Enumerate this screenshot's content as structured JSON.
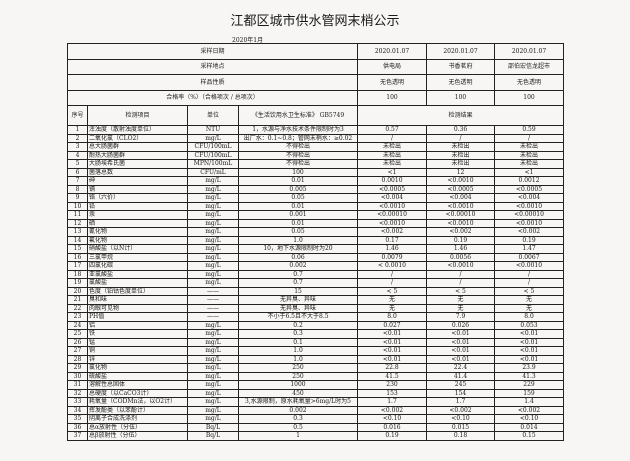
{
  "title": "江都区城市供水管网末梢公示",
  "month": "2020年1月",
  "meta": [
    {
      "label": "采样日期",
      "values": [
        "2020.01.07",
        "2020.01.07",
        "2020.01.07"
      ]
    },
    {
      "label": "采样地点",
      "values": [
        "供电局",
        "书香茗府",
        "邵伯宏信龙超市"
      ]
    },
    {
      "label": "样品性质",
      "values": [
        "无色透明",
        "无色透明",
        "无色透明"
      ]
    },
    {
      "label": "合格率（%）（合格项次 / 总项次）",
      "values": [
        "100",
        "100",
        "100"
      ]
    }
  ],
  "headers": {
    "no": "序号",
    "item": "检测项目",
    "unit": "单位",
    "standard": "《生活饮用水卫生标准》 GB5749",
    "results": "检测结果"
  },
  "rows": [
    [
      "1",
      "浑浊度（散射浊度单位）",
      "NTU",
      "1，水源与净水技术条件限制时为3",
      "0.57",
      "0.36",
      "0.59"
    ],
    [
      "2",
      "二氧化氯（CLO2）",
      "mg/L",
      "出厂水：0.1~0.8；管网末梢水：≥0.02",
      "/",
      "/",
      "/"
    ],
    [
      "3",
      "总大肠菌群",
      "CFU/100mL",
      "不得检出",
      "未检出",
      "未检出",
      "未检出"
    ],
    [
      "4",
      "耐热大肠菌群",
      "CFU/100mL",
      "不得检出",
      "未检出",
      "未检出",
      "未检出"
    ],
    [
      "5",
      "大肠埃希氏菌",
      "MPN/100mL",
      "不得检出",
      "未检出",
      "未检出",
      "未检出"
    ],
    [
      "6",
      "菌落总数",
      "CFU/mL",
      "100",
      "<1",
      "12",
      "<1"
    ],
    [
      "7",
      "砷",
      "mg/L",
      "0.01",
      "0.0010",
      "<0.0010",
      "0.0012"
    ],
    [
      "8",
      "镉",
      "mg/L",
      "0.005",
      "<0.0005",
      "<0.0005",
      "<0.0005"
    ],
    [
      "9",
      "铬（六价）",
      "mg/L",
      "0.05",
      "<0.004",
      "<0.004",
      "<0.004"
    ],
    [
      "10",
      "铅",
      "mg/L",
      "0.01",
      "<0.0010",
      "<0.0010",
      "<0.0010"
    ],
    [
      "11",
      "汞",
      "mg/L",
      "0.001",
      "<0.00010",
      "<0.00010",
      "<0.00010"
    ],
    [
      "12",
      "硒",
      "mg/L",
      "0.01",
      "<0.0010",
      "<0.0010",
      "<0.0010"
    ],
    [
      "13",
      "氰化物",
      "mg/L",
      "0.05",
      "<0.002",
      "<0.002",
      "<0.002"
    ],
    [
      "14",
      "氟化物",
      "mg/L",
      "1.0",
      "0.17",
      "0.19",
      "0.19"
    ],
    [
      "15",
      "硝酸盐（以N计）",
      "mg/L",
      "10，地下水源限制时为20",
      "1.46",
      "1.46",
      "1.47"
    ],
    [
      "16",
      "三氯甲烷",
      "mg/L",
      "0.06",
      "0.0079",
      "0.0056",
      "0.0067"
    ],
    [
      "17",
      "四氯化碳",
      "mg/L",
      "0.002",
      "< 0.0010",
      "<0.0010",
      "<0.0010"
    ],
    [
      "18",
      "亚氯酸盐",
      "mg/L",
      "0.7",
      "/",
      "/",
      "/"
    ],
    [
      "19",
      "氯酸盐",
      "mg/L",
      "0.7",
      "/",
      "/",
      "/"
    ],
    [
      "20",
      "色度（铂钴色度单位）",
      "——",
      "15",
      "< 5",
      "< 5",
      "< 5"
    ],
    [
      "21",
      "臭和味",
      "——",
      "无异臭、异味",
      "无",
      "无",
      "无"
    ],
    [
      "22",
      "肉眼可见物",
      "——",
      "无异臭、异味",
      "无",
      "无",
      "无"
    ],
    [
      "23",
      "PH值",
      "——",
      "不小于6.5且不大于8.5",
      "8.0",
      "7.9",
      "8.0"
    ],
    [
      "24",
      "铝",
      "mg/L",
      "0.2",
      "0.027",
      "0.026",
      "0.053"
    ],
    [
      "25",
      "铁",
      "mg/L",
      "0.3",
      "<0.01",
      "<0.01",
      "<0.01"
    ],
    [
      "26",
      "锰",
      "mg/L",
      "0.1",
      "<0.01",
      "<0.01",
      "<0.01"
    ],
    [
      "27",
      "铜",
      "mg/L",
      "1.0",
      "<0.01",
      "<0.01",
      "<0.01"
    ],
    [
      "28",
      "锌",
      "mg/L",
      "1.0",
      "<0.01",
      "<0.01",
      "<0.01"
    ],
    [
      "29",
      "氯化物",
      "mg/L",
      "250",
      "22.8",
      "22.4",
      "23.9"
    ],
    [
      "30",
      "硫酸盐",
      "mg/L",
      "250",
      "41.5",
      "41.4",
      "41.3"
    ],
    [
      "31",
      "溶解性总固体",
      "mg/L",
      "1000",
      "230",
      "245",
      "229"
    ],
    [
      "32",
      "总硬度（以CaCO3计）",
      "mg/L",
      "450",
      "153",
      "154",
      "159"
    ],
    [
      "33",
      "耗氧量（CODMn法，以O2计）",
      "mg/L",
      "3,水源限制，原水耗氧量>6mg/L时为5",
      "1.7",
      "1.7",
      "1.4"
    ],
    [
      "34",
      "挥发酚类（以苯酚计）",
      "mg/L",
      "0.002",
      "<0.002",
      "<0.002",
      "<0.002"
    ],
    [
      "35",
      "阴离子合成洗涤剂",
      "mg/L",
      "0.3",
      "<0.10",
      "<0.10",
      "<0.10"
    ],
    [
      "36",
      "总α放射性（分伍）",
      "Bq/L",
      "0.5",
      "0.016",
      "0.015",
      "0.014"
    ],
    [
      "37",
      "总β放射性（分伍）",
      "Bq/L",
      "1",
      "0.19",
      "0.18",
      "0.15"
    ]
  ]
}
